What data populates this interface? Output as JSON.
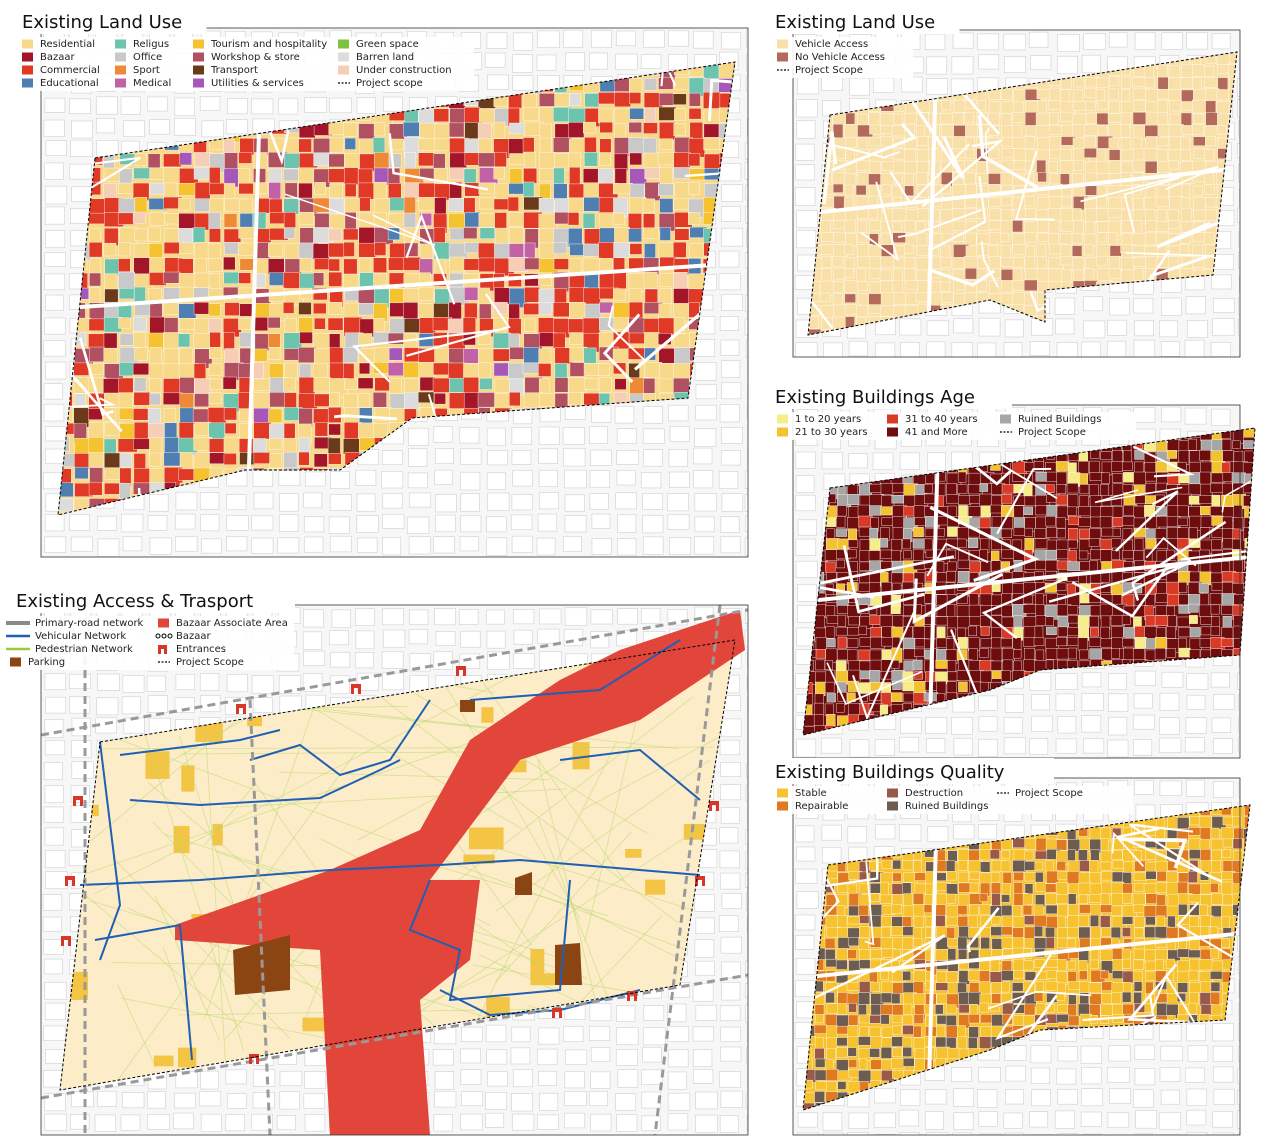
{
  "panels": [
    {
      "title": "Existing Land Use",
      "legend": [
        {
          "label": "Residential",
          "color": "#f8d889"
        },
        {
          "label": "Bazaar",
          "color": "#a3162a"
        },
        {
          "label": "Commercial",
          "color": "#e03a26"
        },
        {
          "label": "Educational",
          "color": "#4f7fb1"
        },
        {
          "label": "Religus",
          "color": "#6cc3ae"
        },
        {
          "label": "Office",
          "color": "#c9c9c9"
        },
        {
          "label": "Sport",
          "color": "#ee8a36"
        },
        {
          "label": "Medical",
          "color": "#c361a6"
        },
        {
          "label": "Tourism and hospitality",
          "color": "#f5c230"
        },
        {
          "label": "Workshop & store",
          "color": "#b05060"
        },
        {
          "label": "Transport",
          "color": "#6b3a1a"
        },
        {
          "label": "Utilities & services",
          "color": "#a558b8"
        },
        {
          "label": "Green space",
          "color": "#7fc241"
        },
        {
          "label": "Barren land",
          "color": "#dcdcdc"
        },
        {
          "label": "Under construction",
          "color": "#f6cdb5"
        },
        {
          "label": "Project scope",
          "color": "#000000",
          "style": "dashed"
        }
      ]
    },
    {
      "title": "Existing Access & Trasport",
      "legend": [
        {
          "label": "Primary-road network",
          "color": "#8a8a8a",
          "style": "road"
        },
        {
          "label": "Vehicular Network",
          "color": "#1f5fb4",
          "style": "line"
        },
        {
          "label": "Pedestrian Network",
          "color": "#9cc93a",
          "style": "line"
        },
        {
          "label": "Parking",
          "color": "#8b4513"
        },
        {
          "label": "Bazaar Associate Area",
          "color": "#e2453a"
        },
        {
          "label": "Bazaar",
          "color": "#000000",
          "style": "circles"
        },
        {
          "label": "Entrances",
          "color": "#d9362a",
          "style": "entrance"
        },
        {
          "label": "Project Scope",
          "color": "#000000",
          "style": "dashed"
        }
      ]
    },
    {
      "title": "Existing Land Use",
      "legend": [
        {
          "label": "Vehicle Access",
          "color": "#f9e0a8"
        },
        {
          "label": "No Vehicle Access",
          "color": "#b36a5a"
        },
        {
          "label": "Project Scope",
          "color": "#000000",
          "style": "dashed"
        }
      ]
    },
    {
      "title": "Existing Buildings Age",
      "legend": [
        {
          "label": "1 to 20 years",
          "color": "#f7ec8a"
        },
        {
          "label": "21 to 30 years",
          "color": "#f2c230"
        },
        {
          "label": "31 to 40 years",
          "color": "#d93a26"
        },
        {
          "label": "41 and More",
          "color": "#6e0d0d"
        },
        {
          "label": "Ruined Buildings",
          "color": "#a6a6a6"
        },
        {
          "label": "Project Scope",
          "color": "#000000",
          "style": "dashed"
        }
      ]
    },
    {
      "title": "Existing Buildings Quality",
      "legend": [
        {
          "label": "Stable",
          "color": "#f6c230"
        },
        {
          "label": "Repairable",
          "color": "#e07a20"
        },
        {
          "label": "Destruction",
          "color": "#9a5a4a"
        },
        {
          "label": "Ruined Buildings",
          "color": "#6d5d50"
        },
        {
          "label": "Project Scope",
          "color": "#000000",
          "style": "dashed"
        }
      ]
    }
  ]
}
